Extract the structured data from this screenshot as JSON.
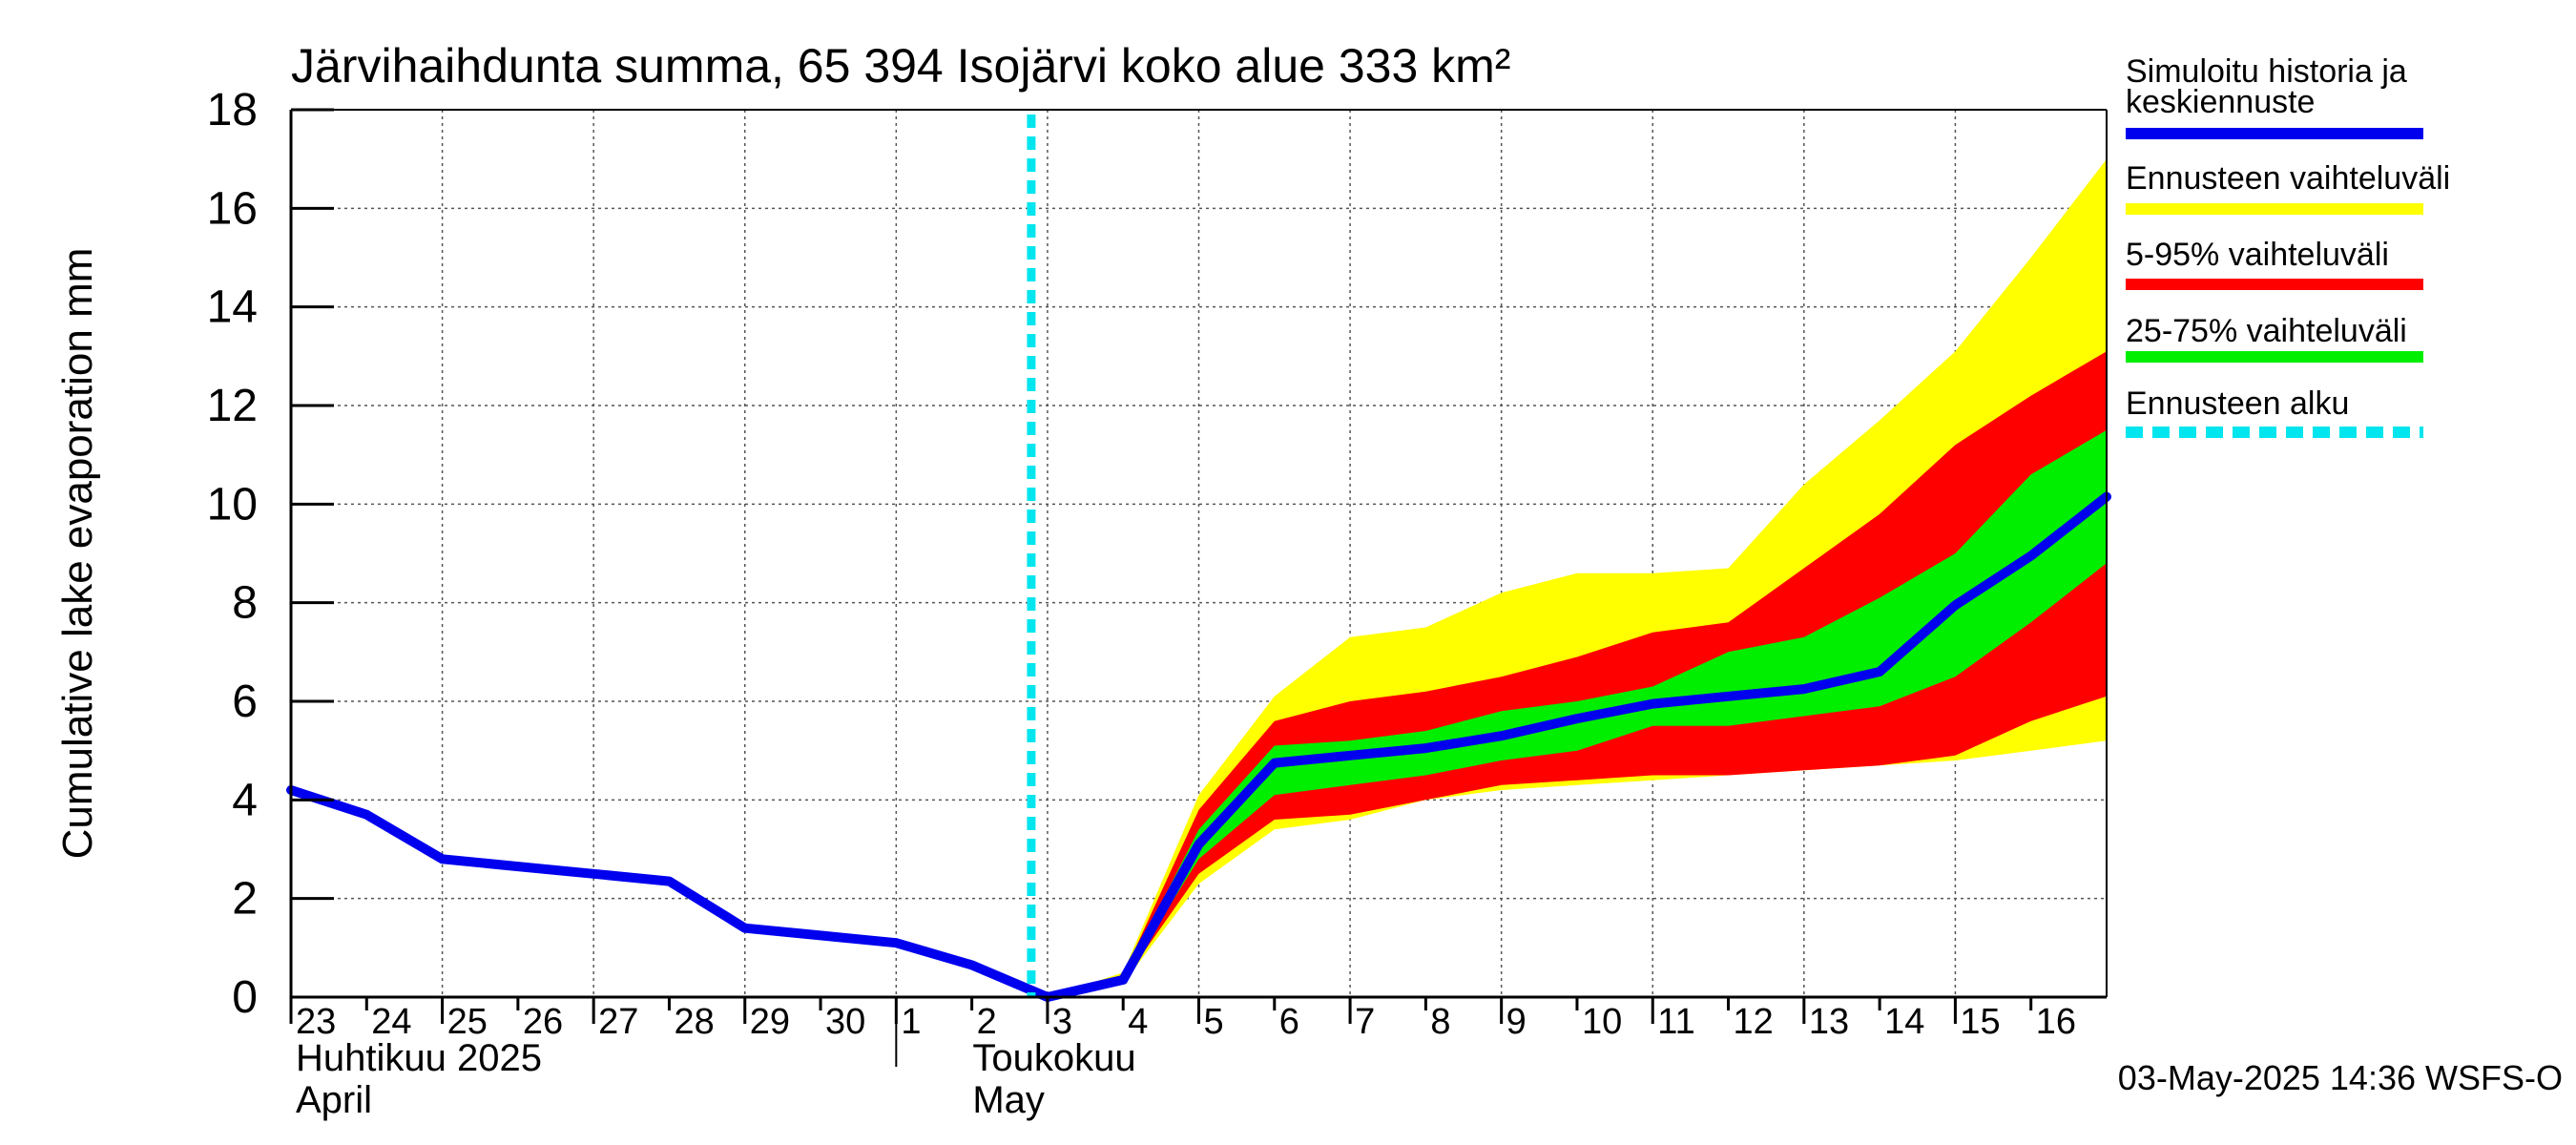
{
  "chart_data": {
    "type": "area",
    "title": "Järvihaihdunta summa, 65 394 Isojärvi koko alue 333 km²",
    "ylabel": "Cumulative lake evaporation   mm",
    "ylim": [
      0,
      18
    ],
    "yticks": [
      "0",
      "2",
      "4",
      "6",
      "8",
      "10",
      "12",
      "14",
      "16",
      "18"
    ],
    "xticks": [
      "23",
      "24",
      "25",
      "26",
      "27",
      "28",
      "29",
      "30",
      "1",
      "2",
      "3",
      "4",
      "5",
      "6",
      "7",
      "8",
      "9",
      "10",
      "11",
      "12",
      "13",
      "14",
      "15",
      "16"
    ],
    "x_dates": [
      "2025-04-23",
      "2025-04-24",
      "2025-04-25",
      "2025-04-26",
      "2025-04-27",
      "2025-04-28",
      "2025-04-29",
      "2025-04-30",
      "2025-05-01",
      "2025-05-02",
      "2025-05-03",
      "2025-05-04",
      "2025-05-05",
      "2025-05-06",
      "2025-05-07",
      "2025-05-08",
      "2025-05-09",
      "2025-05-10",
      "2025-05-11",
      "2025-05-12",
      "2025-05-13",
      "2025-05-14",
      "2025-05-15",
      "2025-05-16",
      "2025-05-17"
    ],
    "month_labels": [
      {
        "fi": "Huhtikuu  2025",
        "en": "April"
      },
      {
        "fi": "Toukokuu",
        "en": "May"
      }
    ],
    "grid": true,
    "legend_position": "right",
    "forecast_start": "2025-05-03",
    "series": [
      {
        "name": "Simuloitu historia ja keskiennuste",
        "color": "#0000ee",
        "values": [
          4.2,
          3.7,
          2.8,
          2.65,
          2.5,
          2.35,
          1.4,
          1.25,
          1.1,
          0.65,
          0.0,
          0.35,
          3.1,
          4.75,
          4.9,
          5.05,
          5.3,
          5.65,
          5.95,
          6.1,
          6.25,
          6.6,
          7.95,
          8.95,
          10.15
        ]
      }
    ],
    "bands": [
      {
        "name": "Ennusteen vaihteluväli",
        "color": "#ffff00",
        "lower": [
          null,
          null,
          null,
          null,
          null,
          null,
          null,
          null,
          null,
          null,
          0.0,
          0.28,
          2.3,
          3.4,
          3.6,
          4.0,
          4.2,
          4.3,
          4.4,
          4.5,
          4.6,
          4.7,
          4.8,
          5.0,
          5.2
        ],
        "upper": [
          null,
          null,
          null,
          null,
          null,
          null,
          null,
          null,
          null,
          null,
          0.0,
          0.5,
          4.1,
          6.1,
          7.3,
          7.5,
          8.2,
          8.6,
          8.6,
          8.7,
          10.4,
          11.7,
          13.1,
          15.0,
          17.0
        ]
      },
      {
        "name": "5-95% vaihteluväli",
        "color": "#ff0000",
        "lower": [
          null,
          null,
          null,
          null,
          null,
          null,
          null,
          null,
          null,
          null,
          0.0,
          0.32,
          2.5,
          3.6,
          3.7,
          4.0,
          4.3,
          4.4,
          4.5,
          4.5,
          4.6,
          4.7,
          4.9,
          5.6,
          6.1
        ],
        "upper": [
          null,
          null,
          null,
          null,
          null,
          null,
          null,
          null,
          null,
          null,
          0.0,
          0.45,
          3.8,
          5.6,
          6.0,
          6.2,
          6.5,
          6.9,
          7.4,
          7.6,
          8.7,
          9.8,
          11.2,
          12.2,
          13.1
        ]
      },
      {
        "name": "25-75% vaihteluväli",
        "color": "#00ee00",
        "lower": [
          null,
          null,
          null,
          null,
          null,
          null,
          null,
          null,
          null,
          null,
          0.0,
          0.34,
          2.8,
          4.1,
          4.3,
          4.5,
          4.8,
          5.0,
          5.5,
          5.5,
          5.7,
          5.9,
          6.5,
          7.6,
          8.8
        ],
        "upper": [
          null,
          null,
          null,
          null,
          null,
          null,
          null,
          null,
          null,
          null,
          0.0,
          0.4,
          3.4,
          5.1,
          5.2,
          5.4,
          5.8,
          6.0,
          6.3,
          7.0,
          7.3,
          8.1,
          9.0,
          10.6,
          11.5
        ]
      }
    ],
    "legend": [
      {
        "label": "Simuloitu historia ja keskiennuste",
        "color": "#0000ee",
        "style": "solid"
      },
      {
        "label": "Ennusteen vaihteluväli",
        "color": "#ffff00",
        "style": "solid"
      },
      {
        "label": "5-95% vaihteluväli",
        "color": "#ff0000",
        "style": "solid"
      },
      {
        "label": "25-75% vaihteluväli",
        "color": "#00ee00",
        "style": "solid"
      },
      {
        "label": "Ennusteen alku",
        "color": "#00e5ee",
        "style": "dashed"
      }
    ],
    "footer": "03-May-2025 14:36 WSFS-O"
  }
}
